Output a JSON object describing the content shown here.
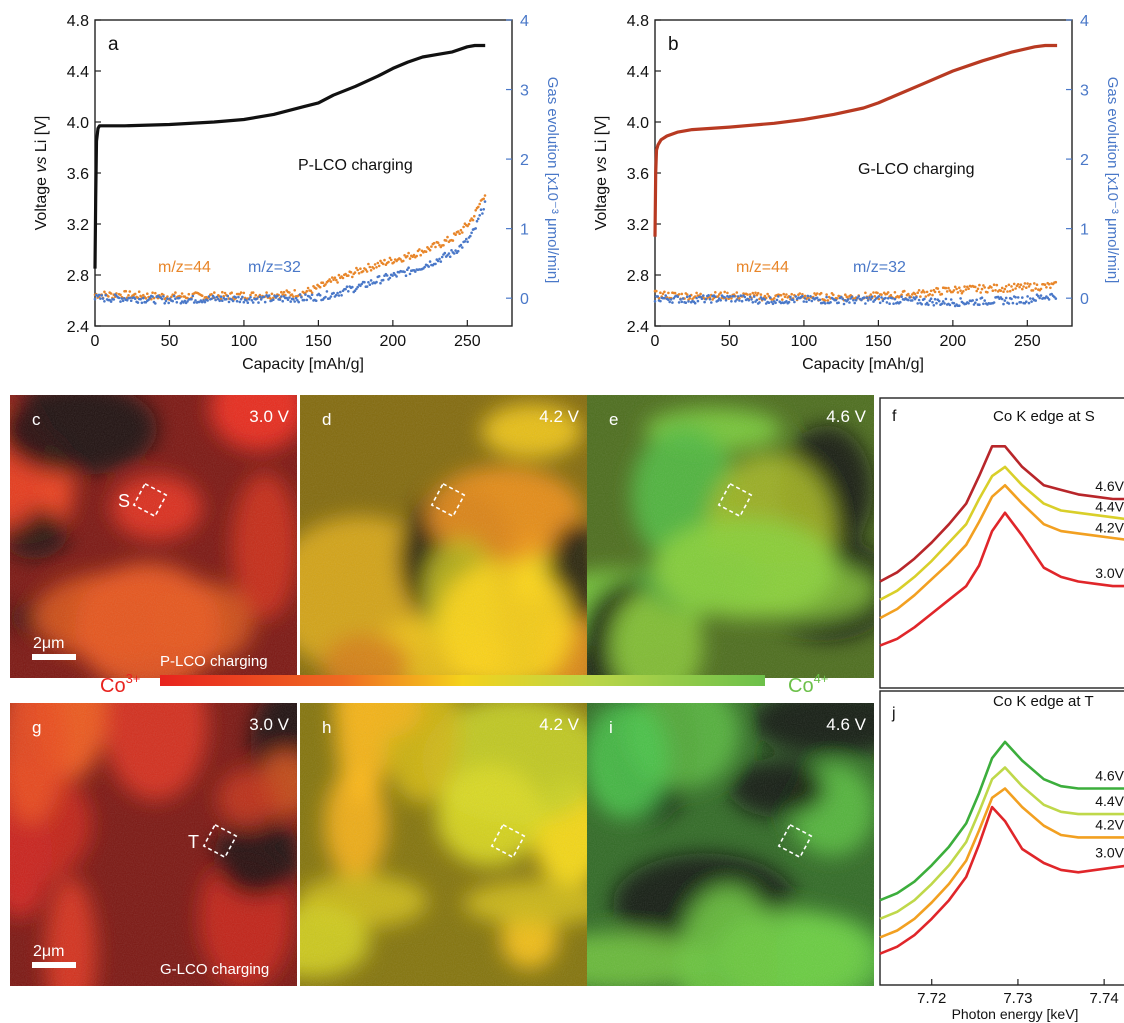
{
  "colors": {
    "voltage_a": "#111111",
    "voltage_b": "#b83a22",
    "mz44": "#e8862a",
    "mz32": "#4a78c8",
    "right_axis": "#4a78c8",
    "co3": "#e8231e",
    "co4": "#6cc04a",
    "spectrum_30": "#e0262a",
    "spectrum_42": "#f2a021",
    "spectrum_44_f": "#d9cf2a",
    "spectrum_46_f": "#b8262a",
    "spectrum_44_j": "#bfd84a",
    "spectrum_46_j": "#3cae3c"
  },
  "chart_data": [
    {
      "type": "line",
      "panel": "a",
      "annotation": "P-LCO charging",
      "xlabel": "Capacity [mAh/g]",
      "ylabel": "Voltage vs Li [V]",
      "ylabel_parts": [
        "Voltage ",
        "vs",
        " Li [V]"
      ],
      "y2label": "Gas evolution [x10⁻³ μmol/min]",
      "xlim": [
        0,
        280
      ],
      "ylim": [
        2.4,
        4.8
      ],
      "y2lim": [
        -0.4,
        4
      ],
      "xticks": [
        "0",
        "50",
        "100",
        "150",
        "200",
        "250"
      ],
      "yticks": [
        "2.4",
        "2.8",
        "3.2",
        "3.6",
        "4.0",
        "4.4",
        "4.8"
      ],
      "y2ticks": [
        "0",
        "1",
        "2",
        "3",
        "4"
      ],
      "voltage": {
        "x": [
          0,
          0.5,
          1,
          2,
          3,
          5,
          20,
          50,
          80,
          100,
          120,
          140,
          150,
          160,
          175,
          190,
          200,
          210,
          220,
          230,
          240,
          250,
          255,
          262
        ],
        "y": [
          2.85,
          3.4,
          3.85,
          3.95,
          3.97,
          3.97,
          3.97,
          3.98,
          4.0,
          4.02,
          4.06,
          4.12,
          4.15,
          4.21,
          4.28,
          4.36,
          4.42,
          4.47,
          4.51,
          4.53,
          4.55,
          4.59,
          4.6,
          4.6
        ]
      },
      "series": [
        {
          "name": "m/z=44",
          "x": [
            0,
            20,
            40,
            60,
            80,
            100,
            120,
            140,
            150,
            160,
            170,
            180,
            190,
            200,
            210,
            220,
            230,
            240,
            250,
            255,
            262
          ],
          "values": [
            0.05,
            0.05,
            0.03,
            0.03,
            0.03,
            0.04,
            0.05,
            0.08,
            0.15,
            0.25,
            0.33,
            0.42,
            0.48,
            0.55,
            0.6,
            0.68,
            0.76,
            0.86,
            1.05,
            1.2,
            1.52
          ]
        },
        {
          "name": "m/z=32",
          "x": [
            0,
            20,
            40,
            60,
            80,
            100,
            120,
            140,
            150,
            160,
            170,
            180,
            190,
            200,
            210,
            220,
            230,
            240,
            250,
            255,
            262
          ],
          "values": [
            0.0,
            0.0,
            -0.02,
            -0.02,
            -0.01,
            -0.01,
            -0.01,
            0.0,
            0.02,
            0.06,
            0.12,
            0.18,
            0.26,
            0.32,
            0.38,
            0.46,
            0.55,
            0.65,
            0.82,
            0.98,
            1.38
          ]
        }
      ]
    },
    {
      "type": "line",
      "panel": "b",
      "annotation": "G-LCO charging",
      "xlabel": "Capacity [mAh/g]",
      "ylabel": "Voltage vs Li [V]",
      "ylabel_parts": [
        "Voltage ",
        "vs",
        " Li [V]"
      ],
      "y2label": "Gas evolution [x10⁻³ μmol/min]",
      "xlim": [
        0,
        280
      ],
      "ylim": [
        2.4,
        4.8
      ],
      "y2lim": [
        -0.4,
        4
      ],
      "xticks": [
        "0",
        "50",
        "100",
        "150",
        "200",
        "250"
      ],
      "yticks": [
        "2.4",
        "2.8",
        "3.2",
        "3.6",
        "4.0",
        "4.4",
        "4.8"
      ],
      "y2ticks": [
        "0",
        "1",
        "2",
        "3",
        "4"
      ],
      "voltage": {
        "x": [
          0,
          0.5,
          1,
          2,
          4,
          8,
          15,
          25,
          50,
          80,
          100,
          120,
          140,
          150,
          160,
          180,
          200,
          220,
          240,
          255,
          262,
          270
        ],
        "y": [
          3.1,
          3.6,
          3.78,
          3.82,
          3.86,
          3.89,
          3.92,
          3.94,
          3.96,
          3.99,
          4.02,
          4.06,
          4.11,
          4.15,
          4.2,
          4.3,
          4.4,
          4.48,
          4.55,
          4.59,
          4.6,
          4.6
        ]
      },
      "series": [
        {
          "name": "m/z=44",
          "x": [
            0,
            25,
            50,
            75,
            100,
            125,
            150,
            175,
            200,
            225,
            250,
            270
          ],
          "values": [
            0.05,
            0.03,
            0.04,
            0.02,
            0.02,
            0.02,
            0.03,
            0.06,
            0.12,
            0.14,
            0.16,
            0.18
          ]
        },
        {
          "name": "m/z=32",
          "x": [
            0,
            25,
            50,
            75,
            100,
            125,
            150,
            175,
            200,
            225,
            250,
            270
          ],
          "values": [
            0.0,
            -0.02,
            0.0,
            -0.03,
            -0.02,
            -0.03,
            -0.02,
            -0.04,
            -0.06,
            -0.04,
            -0.02,
            0.05
          ]
        }
      ]
    },
    {
      "type": "line",
      "panel": "f",
      "title": "Co  K edge at S",
      "xlim": [
        7.714,
        7.743
      ],
      "ylim": [
        -0.05,
        1.05
      ],
      "series": [
        {
          "name": "3.0V",
          "values": [
            0.1,
            0.13,
            0.18,
            0.24,
            0.3,
            0.36,
            0.45,
            0.6,
            0.68,
            0.58,
            0.44,
            0.4,
            0.38,
            0.37,
            0.36,
            0.36
          ]
        },
        {
          "name": "4.2V",
          "values": [
            0.22,
            0.26,
            0.32,
            0.39,
            0.46,
            0.54,
            0.64,
            0.75,
            0.8,
            0.72,
            0.63,
            0.6,
            0.59,
            0.58,
            0.57,
            0.56
          ]
        },
        {
          "name": "4.4V",
          "values": [
            0.3,
            0.34,
            0.4,
            0.47,
            0.55,
            0.63,
            0.74,
            0.84,
            0.88,
            0.8,
            0.72,
            0.69,
            0.68,
            0.67,
            0.66,
            0.65
          ]
        },
        {
          "name": "4.6V",
          "values": [
            0.38,
            0.42,
            0.48,
            0.55,
            0.63,
            0.72,
            0.84,
            0.97,
            0.97,
            0.88,
            0.8,
            0.78,
            0.76,
            0.75,
            0.74,
            0.74
          ]
        }
      ],
      "x": [
        7.714,
        7.716,
        7.718,
        7.72,
        7.722,
        7.724,
        7.7255,
        7.727,
        7.7285,
        7.7305,
        7.733,
        7.735,
        7.737,
        7.739,
        7.741,
        7.743
      ]
    },
    {
      "type": "line",
      "panel": "j",
      "title": "Co  K edge at T",
      "xlim": [
        7.714,
        7.743
      ],
      "ylim": [
        -0.05,
        1.05
      ],
      "xticks": [
        "7.72",
        "7.73",
        "7.74"
      ],
      "xlabel": "Photon energy  [keV]",
      "series": [
        {
          "name": "3.0V",
          "values": [
            0.05,
            0.08,
            0.13,
            0.2,
            0.28,
            0.38,
            0.52,
            0.68,
            0.62,
            0.5,
            0.44,
            0.41,
            0.4,
            0.41,
            0.42,
            0.43
          ]
        },
        {
          "name": "4.2V",
          "values": [
            0.12,
            0.15,
            0.2,
            0.27,
            0.35,
            0.45,
            0.58,
            0.72,
            0.76,
            0.68,
            0.6,
            0.56,
            0.55,
            0.55,
            0.55,
            0.55
          ]
        },
        {
          "name": "4.4V",
          "values": [
            0.2,
            0.23,
            0.28,
            0.35,
            0.43,
            0.53,
            0.66,
            0.8,
            0.85,
            0.77,
            0.69,
            0.66,
            0.65,
            0.65,
            0.65,
            0.65
          ]
        },
        {
          "name": "4.6V",
          "values": [
            0.28,
            0.31,
            0.36,
            0.43,
            0.51,
            0.61,
            0.74,
            0.89,
            0.96,
            0.88,
            0.8,
            0.77,
            0.76,
            0.76,
            0.76,
            0.76
          ]
        }
      ],
      "x": [
        7.714,
        7.716,
        7.718,
        7.72,
        7.722,
        7.724,
        7.7255,
        7.727,
        7.7285,
        7.7305,
        7.733,
        7.735,
        7.737,
        7.739,
        7.741,
        7.743
      ]
    }
  ],
  "maps": [
    {
      "panel": "c",
      "voltage": "3.0 V",
      "level": 0.0,
      "region_label": "S",
      "caption": "P-LCO charging",
      "scalebar": "2μm"
    },
    {
      "panel": "d",
      "voltage": "4.2 V",
      "level": 0.45
    },
    {
      "panel": "e",
      "voltage": "4.6 V",
      "level": 0.8
    },
    {
      "panel": "g",
      "voltage": "3.0 V",
      "level": 0.0,
      "region_label": "T",
      "caption": "G-LCO charging",
      "scalebar": "2μm"
    },
    {
      "panel": "h",
      "voltage": "4.2 V",
      "level": 0.5
    },
    {
      "panel": "i",
      "voltage": "4.6 V",
      "level": 0.95
    }
  ],
  "colorbar": {
    "left_label": "Co",
    "left_sup": "3+",
    "right_label": "Co",
    "right_sup": "4+"
  }
}
